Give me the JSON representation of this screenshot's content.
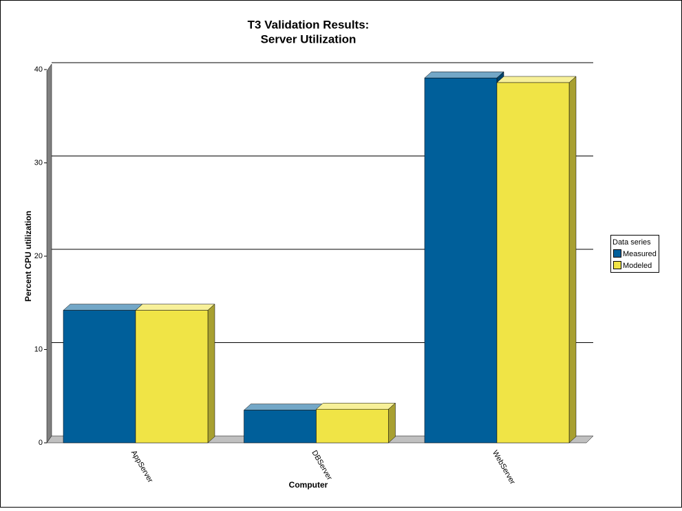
{
  "chart_data": {
    "type": "bar3d",
    "title": [
      "T3 Validation Results:",
      "Server Utilization"
    ],
    "x_label": "Computer",
    "y_label": "Percent CPU utilization",
    "categories": [
      "AppServer",
      "DBServer",
      "WebServer"
    ],
    "series": [
      {
        "name": "Measured",
        "color": "#005f9a",
        "values": [
          14.2,
          3.5,
          39.1
        ]
      },
      {
        "name": "Modeled",
        "color": "#f0e446",
        "values": [
          14.2,
          3.6,
          38.6
        ]
      }
    ],
    "ylim": [
      0,
      40
    ],
    "yticks": [
      0,
      10,
      20,
      30,
      40
    ],
    "grid": true,
    "legend": {
      "title": "Data series",
      "position": "right"
    }
  }
}
